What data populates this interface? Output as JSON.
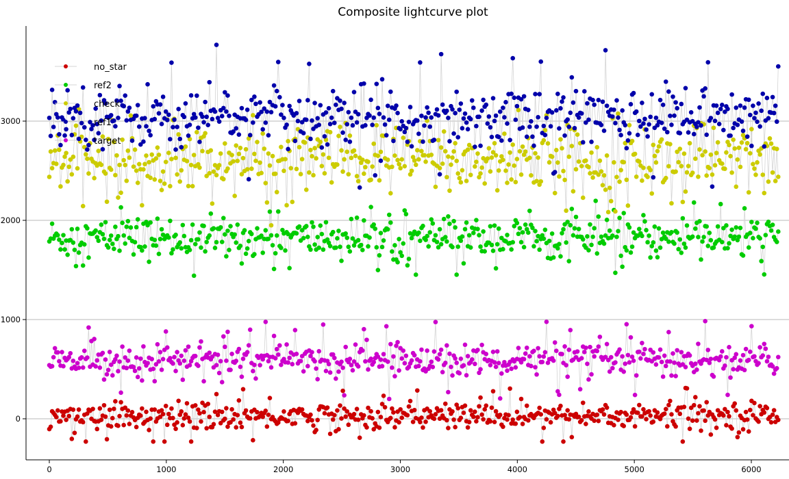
{
  "chart_data": {
    "type": "scatter",
    "title": "Composite lightcurve plot",
    "xlabel": "",
    "ylabel": "",
    "xlim": [
      -200,
      6300
    ],
    "ylim": [
      -420,
      3900
    ],
    "x_ticks": [
      0,
      1000,
      2000,
      3000,
      4000,
      5000,
      6000
    ],
    "y_ticks": [
      0,
      1000,
      2000,
      3000
    ],
    "grid": "horizontal",
    "legend_position": "top-left",
    "x_range": [
      0,
      6230
    ],
    "series": [
      {
        "name": "no_star",
        "color": "#cc0000",
        "center": 30,
        "spread": 95,
        "min": -230,
        "max": 330
      },
      {
        "name": "ref2",
        "color": "#00cc00",
        "center": 1820,
        "spread": 140,
        "min": 1330,
        "max": 2200
      },
      {
        "name": "check",
        "color": "#cccc00",
        "center": 2600,
        "spread": 230,
        "min": 1950,
        "max": 3120
      },
      {
        "name": "ref1",
        "color": "#0000aa",
        "center": 3050,
        "spread": 200,
        "min": 2300,
        "max": 3770
      },
      {
        "name": "target",
        "color": "#cc00cc",
        "center": 590,
        "spread": 110,
        "min": 200,
        "max": 990
      }
    ],
    "points_per_series": 520
  }
}
